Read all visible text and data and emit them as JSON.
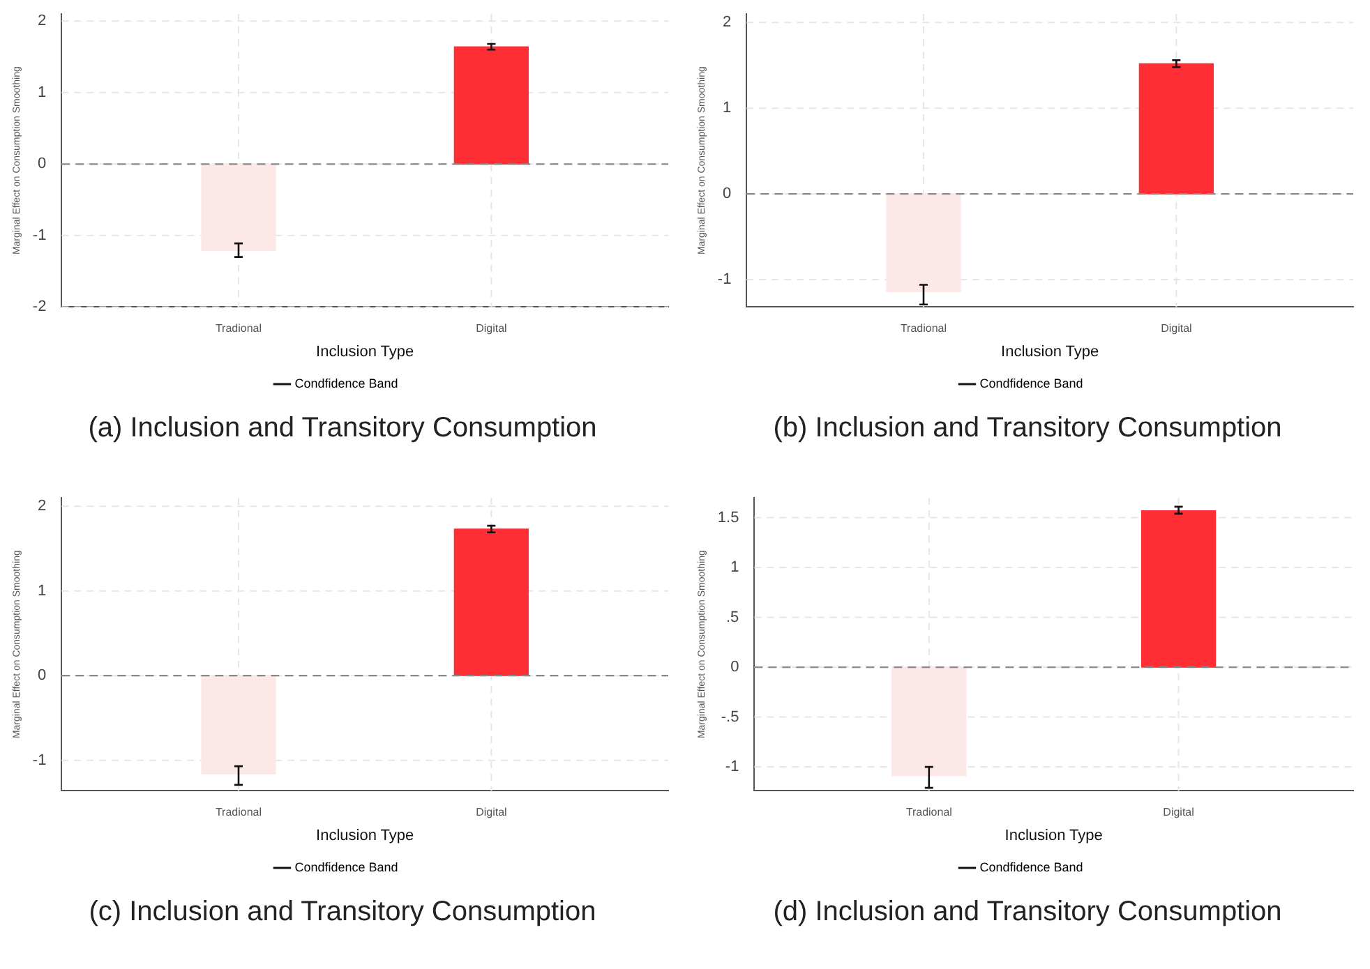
{
  "chart_data": [
    {
      "type": "bar",
      "title": "(a) Inclusion and Transitory Consumption",
      "xlabel": "Inclusion Type",
      "ylabel": "Marginal Effect on Consumption Smoothing",
      "categories": [
        "Tradional",
        "Digital"
      ],
      "series": [
        {
          "name": "Condfidence Band",
          "colors": [
            "#fde8e8",
            "#ff2d34"
          ],
          "values": [
            -1.21,
            1.64
          ],
          "errors": [
            [
              -1.3,
              -1.11
            ],
            [
              1.6,
              1.68
            ]
          ]
        }
      ],
      "ylim": [
        -2,
        2.1
      ],
      "yticks": [
        -2,
        -1,
        0,
        1,
        2
      ],
      "grid": true,
      "legend": "bottom",
      "ref_lines": [
        {
          "axis": "y",
          "value": 0,
          "color": "#888888",
          "line_style": "dashed"
        }
      ]
    },
    {
      "type": "bar",
      "title": "(b) Inclusion and Transitory Consumption",
      "xlabel": "Inclusion Type",
      "ylabel": "Marginal Effect on Consumption Smoothing",
      "categories": [
        "Tradional",
        "Digital"
      ],
      "series": [
        {
          "name": "Condfidence Band",
          "colors": [
            "#fde8e8",
            "#ff2d34"
          ],
          "values": [
            -1.14,
            1.52
          ],
          "errors": [
            [
              -1.29,
              -1.06
            ],
            [
              1.48,
              1.56
            ]
          ]
        }
      ],
      "ylim": [
        -1.32,
        2.1
      ],
      "yticks": [
        -1,
        0,
        1,
        2
      ],
      "grid": true,
      "legend": "bottom",
      "ref_lines": [
        {
          "axis": "y",
          "value": 0,
          "color": "#888888",
          "line_style": "dashed"
        }
      ]
    },
    {
      "type": "bar",
      "title": "(c) Inclusion and Transitory Consumption",
      "xlabel": "Inclusion Type",
      "ylabel": "Marginal Effect on Consumption Smoothing",
      "categories": [
        "Tradional",
        "Digital"
      ],
      "series": [
        {
          "name": "Condfidence Band",
          "colors": [
            "#fde8e8",
            "#ff2d34"
          ],
          "values": [
            -1.16,
            1.73
          ],
          "errors": [
            [
              -1.29,
              -1.07
            ],
            [
              1.69,
              1.77
            ]
          ]
        }
      ],
      "ylim": [
        -1.36,
        2.1
      ],
      "yticks": [
        -1,
        0,
        1,
        2
      ],
      "grid": true,
      "legend": "bottom",
      "ref_lines": [
        {
          "axis": "y",
          "value": 0,
          "color": "#888888",
          "line_style": "dashed"
        }
      ]
    },
    {
      "type": "bar",
      "title": "(d) Inclusion and Transitory Consumption",
      "xlabel": "Inclusion Type",
      "ylabel": "Marginal Effect on Consumption Smoothing",
      "categories": [
        "Tradional",
        "Digital"
      ],
      "series": [
        {
          "name": "Condfidence Band",
          "colors": [
            "#fde8e8",
            "#ff2d34"
          ],
          "values": [
            -1.09,
            1.57
          ],
          "errors": [
            [
              -1.21,
              -1.0
            ],
            [
              1.54,
              1.61
            ]
          ]
        }
      ],
      "ylim": [
        -1.24,
        1.7
      ],
      "yticks": [
        {
          "value": -1,
          "label": "-1"
        },
        {
          "value": -0.5,
          "label": "-.5"
        },
        {
          "value": 0,
          "label": "0"
        },
        {
          "value": 0.5,
          "label": ".5"
        },
        {
          "value": 1,
          "label": "1"
        },
        {
          "value": 1.5,
          "label": "1.5"
        }
      ],
      "grid": true,
      "legend": "bottom",
      "ref_lines": [
        {
          "axis": "y",
          "value": 0,
          "color": "#888888",
          "line_style": "dashed"
        }
      ]
    }
  ]
}
